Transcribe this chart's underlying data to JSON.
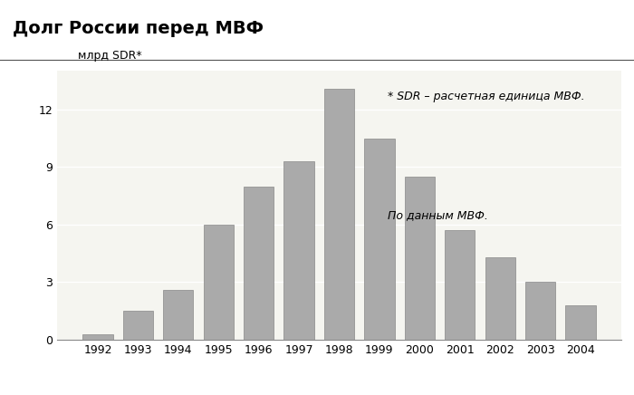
{
  "title": "Долг России перед МВФ",
  "ylabel": "млрд SDR*",
  "years": [
    1992,
    1993,
    1994,
    1995,
    1996,
    1997,
    1998,
    1999,
    2000,
    2001,
    2002,
    2003,
    2004
  ],
  "values": [
    0.3,
    1.5,
    2.6,
    6.0,
    8.0,
    9.3,
    13.1,
    10.5,
    8.5,
    5.7,
    4.3,
    3.0,
    1.8
  ],
  "bar_color": "#aaaaaa",
  "bar_edge_color": "#888888",
  "bg_color": "#ffffff",
  "title_bg_color": "#ffffff",
  "chart_bg_color": "#f5f5f0",
  "grid_color": "#ffffff",
  "yticks": [
    0,
    3,
    6,
    9,
    12
  ],
  "ylim": [
    0,
    14.0
  ],
  "annotation1": "* SDR – расчетная единица МВФ.",
  "annotation2": "По данным МВФ.",
  "title_fontsize": 14,
  "label_fontsize": 9,
  "ylabel_fontsize": 9,
  "annot_fontsize": 9
}
